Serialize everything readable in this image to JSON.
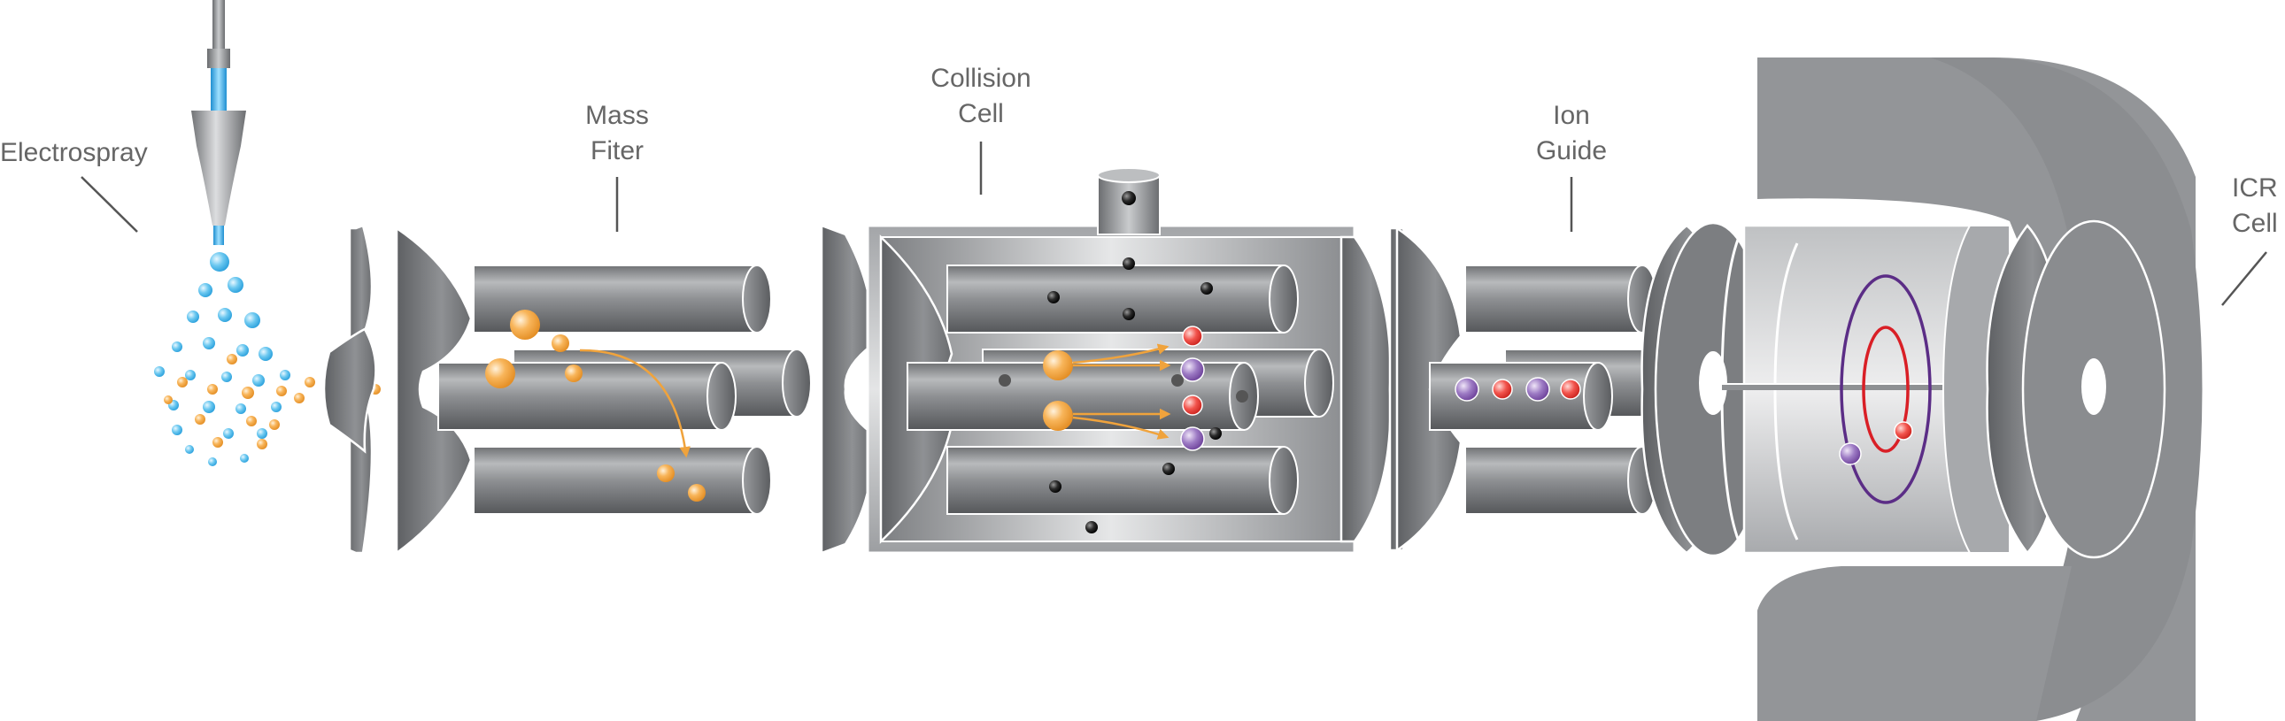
{
  "labels": {
    "electrospray": "Electrospray",
    "mass_filter": [
      "Mass",
      "Fiter"
    ],
    "collision_cell": [
      "Collision",
      "Cell"
    ],
    "ion_guide": [
      "Ion",
      "Guide"
    ],
    "icr_cell": [
      "ICR",
      "Cell"
    ]
  },
  "colors": {
    "metal_dark": "#5f6163",
    "metal_mid": "#8b8d90",
    "metal_light": "#d9dadc",
    "magnet": "#939598",
    "precursor_ion": "#f5a742",
    "droplet": "#4bb8e8",
    "fragment_red": "#e8322d",
    "fragment_purple": "#8b63b0",
    "neutral_gas": "#1a1a1a",
    "orbit_purple": "#5b2d86",
    "orbit_red": "#d91f26",
    "label": "#666666"
  }
}
